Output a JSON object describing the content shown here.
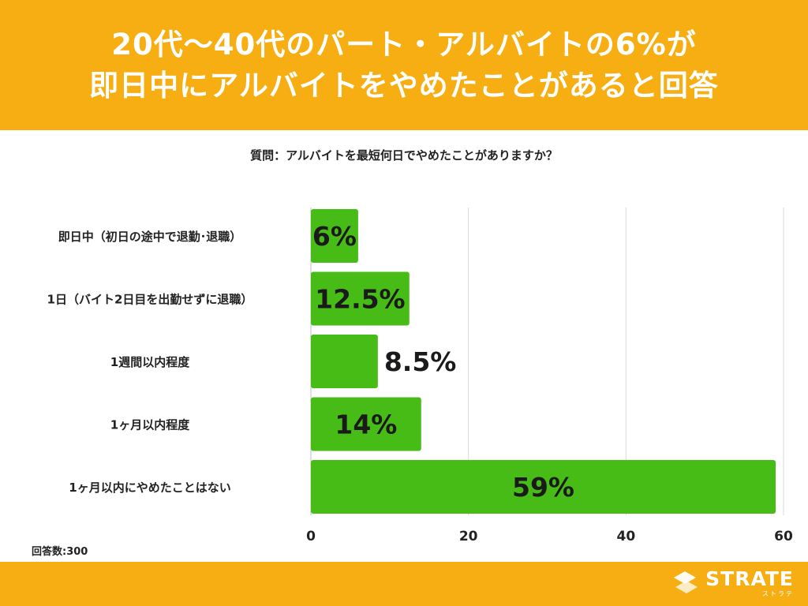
{
  "header": {
    "line1": "20代〜40代のパート・アルバイトの6%が",
    "line2": "即日中にアルバイトをやめたことがあると回答"
  },
  "question": "質問：アルバイトを最短何日でやめたことがありますか？",
  "note": "回答数:300",
  "logo": {
    "main": "STRATE",
    "sub": "ストラテ"
  },
  "colors": {
    "header_bg": "#f6ae13",
    "bar": "#47bc17",
    "label_dark": "#1a1a1a",
    "grid": "#d9d9d9"
  },
  "chart_data": {
    "type": "bar",
    "orientation": "horizontal",
    "title": "質問：アルバイトを最短何日でやめたことがありますか？",
    "categories": [
      "即日中（初日の途中で退勤･退職）",
      "1日（バイト2日目を出勤せずに退職）",
      "1週間以内程度",
      "1ヶ月以内程度",
      "1ヶ月以内にやめたことはない"
    ],
    "values": [
      6,
      12.5,
      8.5,
      14,
      59
    ],
    "data_labels": [
      "6%",
      "12.5%",
      "8.5%",
      "14%",
      "59%"
    ],
    "xlim": [
      0,
      60
    ],
    "ticks": [
      0,
      20,
      40,
      60
    ],
    "tick_labels": [
      "0",
      "20",
      "40",
      "60"
    ],
    "unit": "%",
    "grid": true
  }
}
